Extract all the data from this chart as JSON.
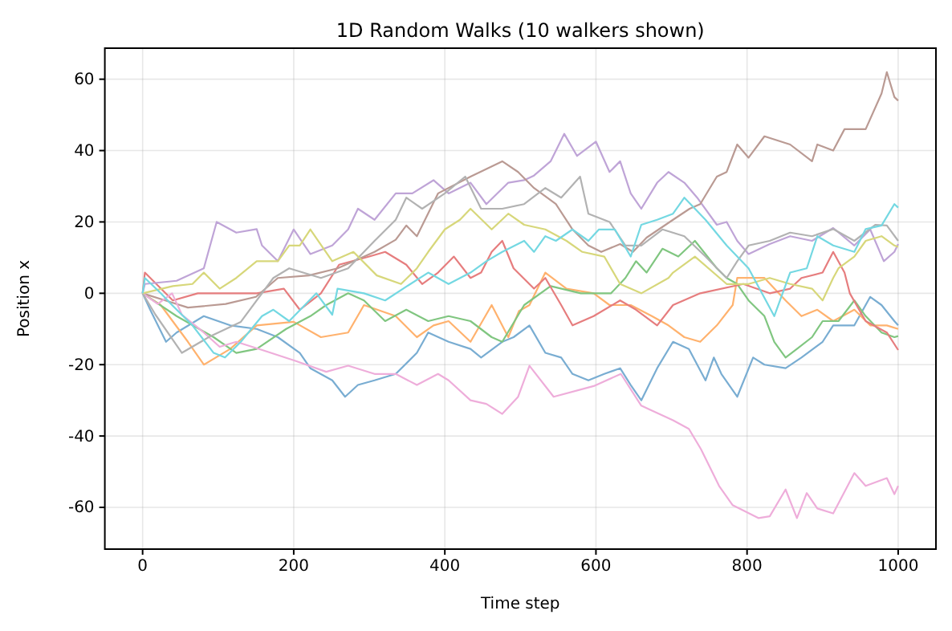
{
  "chart_data": {
    "type": "line",
    "title": "1D Random Walks (10 walkers shown)",
    "xlabel": "Time step",
    "ylabel": "Position x",
    "xlim": [
      -50,
      1050
    ],
    "ylim": [
      -71.7,
      68.7
    ],
    "xticks": [
      0,
      200,
      400,
      600,
      800,
      1000
    ],
    "yticks": [
      -60,
      -40,
      -20,
      0,
      20,
      40,
      60
    ],
    "grid": true,
    "series": [
      {
        "color": "#79add2",
        "x": [
          0,
          10,
          31,
          45,
          81,
          116,
          151,
          179,
          208,
          222,
          251,
          268,
          285,
          307,
          335,
          363,
          378,
          405,
          434,
          448,
          476,
          491,
          512,
          533,
          554,
          569,
          590,
          611,
          632,
          646,
          660,
          681,
          702,
          723,
          745,
          756,
          766,
          787,
          808,
          823,
          851,
          872,
          900,
          914,
          942,
          963,
          978,
          995,
          1000
        ],
        "values": [
          0,
          -4.6,
          -13.6,
          -11,
          -6.4,
          -9,
          -10,
          -12.3,
          -16.7,
          -21,
          -24.4,
          -29,
          -25.7,
          -24.4,
          -22.6,
          -16.7,
          -11,
          -13.6,
          -15.6,
          -18,
          -13.6,
          -12.3,
          -9,
          -16.7,
          -18,
          -22.6,
          -24.4,
          -22.6,
          -21,
          -25.7,
          -30,
          -21,
          -13.6,
          -15.6,
          -24.4,
          -18,
          -22.6,
          -29,
          -18,
          -20,
          -21,
          -18,
          -13.6,
          -9,
          -9,
          -1,
          -3.3,
          -7.8,
          -9
        ]
      },
      {
        "color": "#ffb26e",
        "x": [
          0,
          24,
          60,
          81,
          116,
          151,
          200,
          236,
          272,
          293,
          335,
          363,
          385,
          405,
          434,
          462,
          484,
          498,
          512,
          533,
          561,
          597,
          618,
          646,
          674,
          696,
          717,
          738,
          760,
          781,
          787,
          823,
          851,
          872,
          893,
          914,
          942,
          963,
          985,
          1000
        ],
        "values": [
          0,
          -3.3,
          -13.6,
          -20,
          -15.6,
          -9,
          -8,
          -12.3,
          -11,
          -3.3,
          -6.4,
          -12.3,
          -9,
          -7.8,
          -13.6,
          -3.3,
          -12.3,
          -5,
          -3.3,
          5.8,
          1.3,
          0,
          -3.3,
          -3.3,
          -6.4,
          -9,
          -12.3,
          -13.6,
          -9,
          -3.3,
          4.3,
          4.3,
          -2,
          -6.4,
          -4.6,
          -7.8,
          -4.6,
          -9,
          -9,
          -10
        ]
      },
      {
        "color": "#80c680",
        "x": [
          0,
          45,
          94,
          124,
          151,
          190,
          222,
          243,
          272,
          293,
          321,
          349,
          378,
          405,
          434,
          462,
          476,
          505,
          540,
          580,
          620,
          639,
          653,
          667,
          688,
          709,
          731,
          760,
          773,
          787,
          802,
          823,
          836,
          851,
          866,
          886,
          900,
          921,
          942,
          957,
          978,
          995,
          1000
        ],
        "values": [
          0,
          -6.4,
          -12.3,
          -16.7,
          -15.6,
          -10,
          -6.4,
          -3.3,
          0,
          -2,
          -7.8,
          -4.6,
          -7.8,
          -6.4,
          -7.8,
          -12.3,
          -13.6,
          -3.3,
          2,
          0,
          0,
          4.3,
          9,
          5.8,
          12.5,
          10.3,
          14.7,
          7,
          4.3,
          2.6,
          -2,
          -6.4,
          -13.6,
          -18,
          -15.6,
          -12.3,
          -7.8,
          -7.8,
          -2,
          -6.4,
          -11,
          -12.3,
          -12
        ]
      },
      {
        "color": "#e67d7e",
        "x": [
          0,
          3,
          40,
          73,
          109,
          151,
          187,
          208,
          236,
          260,
          300,
          321,
          349,
          370,
          391,
          412,
          434,
          448,
          462,
          476,
          491,
          518,
          533,
          554,
          569,
          597,
          632,
          653,
          681,
          702,
          738,
          795,
          830,
          857,
          872,
          900,
          914,
          929,
          936,
          957,
          985,
          1000
        ],
        "values": [
          0,
          5.8,
          -2,
          0,
          0,
          0,
          1.3,
          -4.6,
          0,
          8,
          10.3,
          11.6,
          8,
          2.6,
          5.8,
          10.3,
          4.3,
          5.8,
          11.6,
          14.7,
          7,
          1.3,
          4.3,
          -3.3,
          -9,
          -6.4,
          -2,
          -4.6,
          -9,
          -3.3,
          0,
          2.6,
          0,
          1.3,
          4.3,
          5.8,
          11.6,
          5.8,
          0,
          -7.8,
          -11,
          -15.9
        ]
      },
      {
        "color": "#bfa4d7",
        "x": [
          0,
          3,
          45,
          81,
          98,
          124,
          151,
          158,
          179,
          200,
          222,
          251,
          272,
          285,
          307,
          335,
          357,
          385,
          405,
          434,
          455,
          484,
          505,
          518,
          540,
          558,
          575,
          600,
          618,
          632,
          646,
          660,
          681,
          696,
          717,
          734,
          760,
          773,
          787,
          802,
          830,
          857,
          886,
          914,
          942,
          963,
          981,
          995,
          1000
        ],
        "values": [
          0,
          2.6,
          3.5,
          7,
          20,
          17,
          18,
          13.4,
          9,
          17.9,
          11,
          13.4,
          17.9,
          23.7,
          20.6,
          28,
          28,
          31.7,
          28,
          31,
          25,
          31,
          31.7,
          33,
          37,
          44.7,
          38.5,
          42.5,
          34,
          37,
          28,
          23.7,
          31,
          34,
          31,
          26.8,
          19.2,
          20,
          14.7,
          11,
          13.8,
          16,
          14.7,
          18.3,
          13.4,
          17.9,
          9,
          11.6,
          13.8
        ]
      },
      {
        "color": "#ba9a93",
        "x": [
          0,
          30,
          60,
          110,
          150,
          179,
          220,
          258,
          307,
          335,
          349,
          363,
          391,
          434,
          476,
          497,
          518,
          547,
          569,
          590,
          607,
          632,
          649,
          667,
          702,
          724,
          738,
          760,
          773,
          787,
          802,
          823,
          857,
          886,
          893,
          914,
          929,
          957,
          978,
          985,
          995,
          1000
        ],
        "values": [
          0,
          -2,
          -4,
          -3,
          -1,
          4.3,
          5,
          7,
          11.6,
          15,
          19,
          16,
          28,
          32.7,
          37,
          34,
          29.5,
          25,
          17.9,
          13.4,
          11.6,
          13.8,
          11.6,
          15.6,
          20.6,
          23.7,
          25,
          32.7,
          34,
          41.7,
          38,
          44,
          41.7,
          37,
          41.7,
          40,
          46,
          46,
          56,
          62,
          55,
          54
        ]
      },
      {
        "color": "#eeadda",
        "x": [
          0,
          20,
          39,
          52,
          81,
          102,
          124,
          160,
          203,
          243,
          272,
          307,
          335,
          363,
          391,
          405,
          434,
          455,
          476,
          497,
          512,
          544,
          597,
          633,
          660,
          702,
          723,
          739,
          763,
          781,
          815,
          830,
          851,
          866,
          879,
          893,
          914,
          942,
          957,
          985,
          995,
          1000
        ],
        "values": [
          0,
          -3,
          0,
          -6,
          -11,
          -15,
          -13.6,
          -16,
          -19,
          -22,
          -20.3,
          -22.6,
          -22.6,
          -25.7,
          -22.6,
          -24.4,
          -30,
          -31,
          -33.8,
          -29,
          -20.3,
          -29,
          -26,
          -22.6,
          -31.5,
          -35.6,
          -38,
          -43.7,
          -54,
          -59.4,
          -63,
          -62.5,
          -55,
          -63,
          -56,
          -60.3,
          -61.7,
          -50.4,
          -54,
          -51.8,
          -56.3,
          -54
        ]
      },
      {
        "color": "#b2b2b2",
        "x": [
          0,
          17,
          52,
          90,
          130,
          173,
          194,
          236,
          272,
          307,
          335,
          349,
          370,
          400,
          427,
          448,
          476,
          505,
          533,
          554,
          579,
          590,
          618,
          639,
          660,
          688,
          717,
          745,
          773,
          787,
          802,
          830,
          857,
          886,
          914,
          942,
          970,
          985,
          1000
        ],
        "values": [
          0,
          -6,
          -16.7,
          -12,
          -8,
          4.3,
          7,
          4.3,
          7,
          14.7,
          20.6,
          26.8,
          23.7,
          28,
          32.7,
          23.7,
          23.7,
          25,
          29.5,
          26.8,
          32.7,
          22.3,
          20,
          13.4,
          13.4,
          17.9,
          16,
          10.3,
          4.3,
          9,
          13.4,
          14.7,
          17,
          16,
          18,
          14.7,
          19.2,
          19,
          14.7
        ]
      },
      {
        "color": "#d7d77a",
        "x": [
          0,
          40,
          66,
          81,
          102,
          124,
          151,
          179,
          194,
          208,
          222,
          251,
          279,
          310,
          342,
          363,
          378,
          400,
          420,
          434,
          462,
          484,
          505,
          533,
          561,
          582,
          611,
          632,
          660,
          696,
          702,
          731,
          773,
          802,
          830,
          857,
          886,
          900,
          914,
          921,
          942,
          957,
          978,
          995,
          1000
        ],
        "values": [
          0,
          2,
          2.6,
          5.8,
          1.3,
          4.3,
          9,
          9,
          13.4,
          13.4,
          17.9,
          9,
          11.6,
          5,
          2.6,
          7,
          11.6,
          17.9,
          20.6,
          23.7,
          17.9,
          22.3,
          19.2,
          17.9,
          14.7,
          11.6,
          10.3,
          2.6,
          0,
          4.3,
          5.8,
          10.3,
          2.6,
          2.6,
          4.3,
          2.6,
          1.3,
          -2,
          4.3,
          7,
          10.3,
          14.7,
          16,
          13.4,
          13
        ]
      },
      {
        "color": "#74d8e2",
        "x": [
          0,
          3,
          24,
          39,
          66,
          94,
          109,
          130,
          158,
          173,
          194,
          230,
          251,
          258,
          293,
          321,
          350,
          378,
          405,
          434,
          455,
          476,
          505,
          518,
          533,
          547,
          569,
          590,
          604,
          625,
          646,
          660,
          681,
          702,
          717,
          745,
          773,
          802,
          836,
          857,
          879,
          893,
          914,
          942,
          957,
          978,
          995,
          1000
        ],
        "values": [
          0,
          4.3,
          0,
          -3.3,
          -9,
          -16.7,
          -18,
          -13.6,
          -6.4,
          -4.6,
          -7.8,
          0,
          -6,
          1.3,
          0,
          -2,
          2,
          5.8,
          2.6,
          5.8,
          9,
          11.6,
          14.7,
          11.6,
          16,
          14.7,
          17.9,
          14.7,
          17.9,
          17.9,
          10.3,
          19.2,
          20.6,
          22.3,
          26.8,
          20.6,
          13.4,
          7,
          -6.4,
          5.8,
          7,
          16,
          13.4,
          11.6,
          18,
          19,
          25,
          24
        ]
      }
    ]
  }
}
